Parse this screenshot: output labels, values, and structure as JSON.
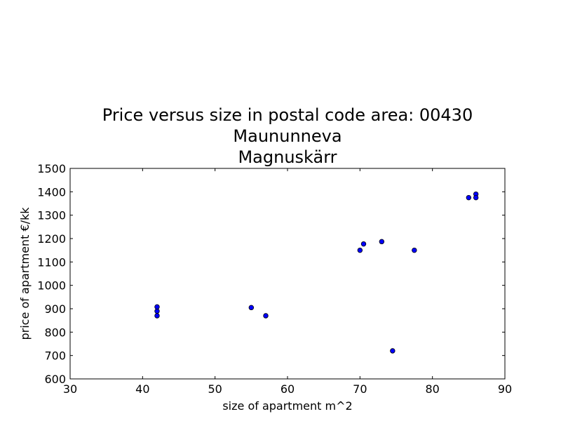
{
  "chart_data": {
    "type": "scatter",
    "title_lines": [
      "Price versus size in postal code area: 00430",
      "Maununneva",
      "Magnuskärr"
    ],
    "xlabel": "size of apartment m^2",
    "ylabel": "price of apartment €/kk",
    "xlim": [
      30,
      90
    ],
    "ylim": [
      600,
      1500
    ],
    "xticks": [
      "30",
      "40",
      "50",
      "60",
      "70",
      "80",
      "90"
    ],
    "yticks": [
      "600",
      "700",
      "800",
      "900",
      "1000",
      "1100",
      "1200",
      "1300",
      "1400",
      "1500"
    ],
    "grid": false,
    "marker_color": "#0000ff",
    "points": [
      {
        "x": 42,
        "y": 870
      },
      {
        "x": 42,
        "y": 890
      },
      {
        "x": 42,
        "y": 908
      },
      {
        "x": 55,
        "y": 905
      },
      {
        "x": 57,
        "y": 870
      },
      {
        "x": 70,
        "y": 1150
      },
      {
        "x": 70.5,
        "y": 1177
      },
      {
        "x": 73,
        "y": 1187
      },
      {
        "x": 74.5,
        "y": 720
      },
      {
        "x": 77.5,
        "y": 1150
      },
      {
        "x": 85,
        "y": 1375
      },
      {
        "x": 86,
        "y": 1390
      },
      {
        "x": 86,
        "y": 1375
      }
    ]
  }
}
